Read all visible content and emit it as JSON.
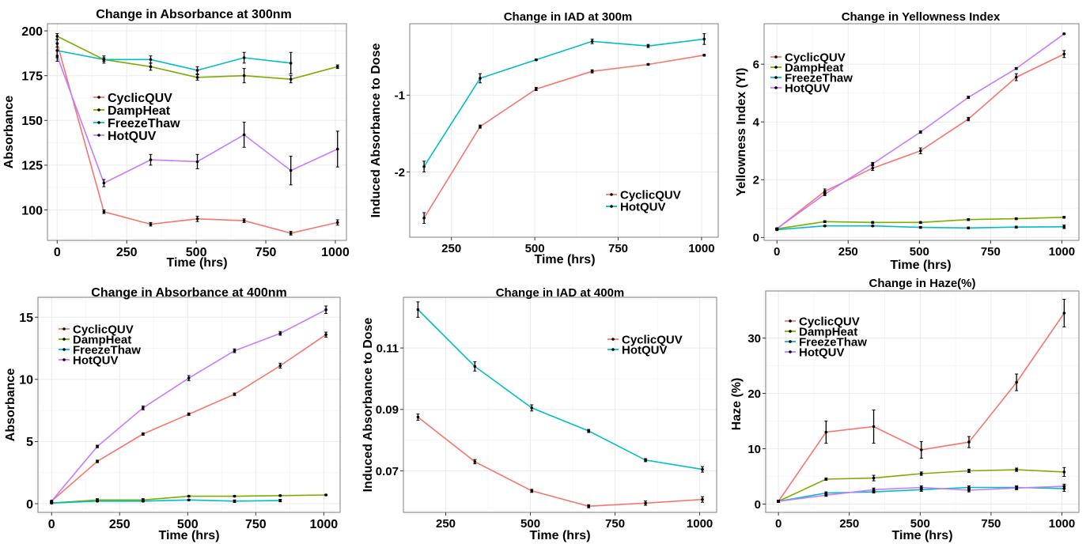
{
  "chart_data": [
    {
      "type": "line",
      "title": "Change in Absorbance at 300nm",
      "xlabel": "Time (hrs)",
      "ylabel": "Absorbance",
      "xlim": [
        -35,
        1040
      ],
      "ylim": [
        83,
        204
      ],
      "xticks": [
        0,
        250,
        500,
        750,
        1000
      ],
      "yticks": [
        100,
        125,
        150,
        175,
        200
      ],
      "legend": "center-left",
      "grid": true,
      "series": [
        {
          "name": "CyclicQUV",
          "color": "#f8766d",
          "x": [
            0,
            168,
            336,
            504,
            672,
            840,
            1008
          ],
          "y": [
            193,
            99,
            92,
            95,
            94,
            87,
            93
          ],
          "err": [
            2,
            1,
            1,
            1.5,
            1,
            1,
            1.5
          ]
        },
        {
          "name": "DampHeat",
          "color": "#7cae00",
          "x": [
            0,
            168,
            336,
            504,
            672,
            840,
            1008
          ],
          "y": [
            197,
            184,
            180,
            174,
            175,
            173,
            180
          ],
          "err": [
            1.5,
            2,
            2,
            1.5,
            4,
            2,
            1
          ]
        },
        {
          "name": "FreezeThaw",
          "color": "#00bfc4",
          "x": [
            0,
            168,
            336,
            504,
            672,
            840
          ],
          "y": [
            189,
            184,
            184,
            178,
            185,
            182
          ],
          "err": [
            4,
            1,
            2,
            2,
            3,
            6
          ]
        },
        {
          "name": "HotQUV",
          "color": "#c77cff",
          "x": [
            0,
            168,
            336,
            504,
            672,
            840,
            1008
          ],
          "y": [
            186,
            115,
            128,
            127,
            142,
            122,
            134
          ],
          "err": [
            3,
            2,
            3,
            4,
            7,
            8,
            10
          ]
        }
      ]
    },
    {
      "type": "line",
      "title": "Change in IAD at 300m",
      "xlabel": "Time (hrs)",
      "ylabel": "Induced Absorbance to Dose",
      "xlim": [
        125,
        1050
      ],
      "ylim": [
        -2.85,
        -0.07
      ],
      "xticks": [
        250,
        500,
        750,
        1000
      ],
      "yticks": [
        -2,
        -1
      ],
      "legend": "bottom-right",
      "grid": true,
      "series": [
        {
          "name": "CyclicQUV",
          "color": "#f8766d",
          "x": [
            168,
            336,
            504,
            672,
            840,
            1008
          ],
          "y": [
            -2.6,
            -1.41,
            -0.92,
            -0.69,
            -0.6,
            -0.48
          ],
          "err": [
            0.07,
            0.02,
            0.02,
            0.02,
            0.01,
            0.01
          ]
        },
        {
          "name": "HotQUV",
          "color": "#00bfc4",
          "x": [
            168,
            336,
            504,
            672,
            840,
            1008
          ],
          "y": [
            -1.93,
            -0.78,
            -0.54,
            -0.3,
            -0.36,
            -0.27
          ],
          "err": [
            0.07,
            0.06,
            0.01,
            0.03,
            0.02,
            0.07
          ]
        }
      ]
    },
    {
      "type": "line",
      "title": "Change in Yellowness Index",
      "xlabel": "Time (hrs)",
      "ylabel": "Yellowness Index (YI)",
      "xlim": [
        -45,
        1060
      ],
      "ylim": [
        -0.1,
        7.4
      ],
      "xticks": [
        0,
        250,
        500,
        750,
        1000
      ],
      "yticks": [
        0,
        2,
        4,
        6
      ],
      "legend": "top-left",
      "grid": true,
      "series": [
        {
          "name": "CyclicQUV",
          "color": "#f8766d",
          "x": [
            0,
            168,
            336,
            504,
            672,
            840,
            1008
          ],
          "y": [
            0.3,
            1.6,
            2.4,
            3.0,
            4.1,
            5.55,
            6.35
          ],
          "err": [
            0.03,
            0.08,
            0.08,
            0.1,
            0.06,
            0.12,
            0.12
          ]
        },
        {
          "name": "DampHeat",
          "color": "#7cae00",
          "x": [
            0,
            168,
            336,
            504,
            672,
            840,
            1008
          ],
          "y": [
            0.3,
            0.55,
            0.52,
            0.52,
            0.62,
            0.65,
            0.7
          ],
          "err": [
            0.02,
            0.03,
            0.03,
            0.03,
            0.03,
            0.03,
            0.03
          ]
        },
        {
          "name": "FreezeThaw",
          "color": "#00bfc4",
          "x": [
            0,
            168,
            336,
            504,
            672,
            840,
            1008
          ],
          "y": [
            0.27,
            0.4,
            0.4,
            0.35,
            0.33,
            0.36,
            0.37
          ],
          "err": [
            0.02,
            0.02,
            0.02,
            0.03,
            0.03,
            0.03,
            0.06
          ]
        },
        {
          "name": "HotQUV",
          "color": "#c77cff",
          "x": [
            0,
            168,
            336,
            504,
            672,
            840,
            1008
          ],
          "y": [
            0.3,
            1.5,
            2.55,
            3.65,
            4.85,
            5.85,
            7.05
          ],
          "err": [
            0.03,
            0.05,
            0.05,
            0.04,
            0.04,
            0.03,
            0.02
          ]
        }
      ]
    },
    {
      "type": "line",
      "title": "Change in Absorbance at 400nm",
      "xlabel": "Time (hrs)",
      "ylabel": "Absorbance",
      "xlim": [
        -50,
        1060
      ],
      "ylim": [
        -0.7,
        16.6
      ],
      "xticks": [
        0,
        250,
        500,
        750,
        1000
      ],
      "yticks": [
        0,
        5,
        10,
        15
      ],
      "legend": "top-left",
      "grid": true,
      "series": [
        {
          "name": "CyclicQUV",
          "color": "#f8766d",
          "x": [
            0,
            168,
            336,
            504,
            672,
            840,
            1008
          ],
          "y": [
            0.2,
            3.4,
            5.6,
            7.2,
            8.8,
            11.1,
            13.6
          ],
          "err": [
            0.05,
            0.1,
            0.1,
            0.1,
            0.1,
            0.2,
            0.2
          ]
        },
        {
          "name": "DampHeat",
          "color": "#7cae00",
          "x": [
            0,
            168,
            336,
            504,
            672,
            840,
            1008
          ],
          "y": [
            0.05,
            0.3,
            0.3,
            0.6,
            0.6,
            0.65,
            0.7
          ],
          "err": [
            0.05,
            0.1,
            0.1,
            0.05,
            0.05,
            0.05,
            0.05
          ]
        },
        {
          "name": "FreezeThaw",
          "color": "#00bfc4",
          "x": [
            0,
            168,
            336,
            504,
            672,
            840
          ],
          "y": [
            0.05,
            0.2,
            0.2,
            0.3,
            0.2,
            0.25
          ],
          "err": [
            0.05,
            0.05,
            0.05,
            0.05,
            0.1,
            0.1
          ]
        },
        {
          "name": "HotQUV",
          "color": "#c77cff",
          "x": [
            0,
            168,
            336,
            504,
            672,
            840,
            1008
          ],
          "y": [
            0.2,
            4.6,
            7.7,
            10.1,
            12.3,
            13.7,
            15.6
          ],
          "err": [
            0.05,
            0.1,
            0.15,
            0.2,
            0.15,
            0.15,
            0.3
          ]
        }
      ]
    },
    {
      "type": "line",
      "title": "Change in IAD at 400m",
      "xlabel": "Time (hrs)",
      "ylabel": "Induced Absorbance to Dose",
      "xlim": [
        125,
        1050
      ],
      "ylim": [
        0.0565,
        0.1265
      ],
      "xticks": [
        250,
        500,
        750,
        1000
      ],
      "yticks": [
        0.07,
        0.09,
        0.11
      ],
      "legend": "top-right",
      "grid": true,
      "series": [
        {
          "name": "CyclicQUV",
          "color": "#f8766d",
          "x": [
            168,
            336,
            504,
            672,
            840,
            1008
          ],
          "y": [
            0.0875,
            0.073,
            0.0635,
            0.0585,
            0.0595,
            0.0607
          ],
          "err": [
            0.001,
            0.0007,
            0.0005,
            0.0005,
            0.0007,
            0.0009
          ]
        },
        {
          "name": "HotQUV",
          "color": "#00bfc4",
          "x": [
            168,
            336,
            504,
            672,
            840,
            1008
          ],
          "y": [
            0.1225,
            0.104,
            0.0905,
            0.083,
            0.0735,
            0.0705
          ],
          "err": [
            0.0025,
            0.0015,
            0.001,
            0.0005,
            0.0005,
            0.0009
          ]
        }
      ]
    },
    {
      "type": "line",
      "title": "Change in Haze(%)",
      "xlabel": "Time (hrs)",
      "ylabel": "Haze (%)",
      "xlim": [
        -45,
        1060
      ],
      "ylim": [
        -1.5,
        38.5
      ],
      "xticks": [
        0,
        250,
        500,
        750,
        1000
      ],
      "yticks": [
        0,
        10,
        20,
        30
      ],
      "legend": "top-left",
      "grid": true,
      "series": [
        {
          "name": "CyclicQUV",
          "color": "#f8766d",
          "x": [
            0,
            168,
            336,
            504,
            672,
            840,
            1008
          ],
          "y": [
            0.5,
            13,
            14,
            9.8,
            11.2,
            22,
            34.5
          ],
          "err": [
            0.2,
            2,
            3,
            1.5,
            1,
            1.5,
            2.5
          ]
        },
        {
          "name": "DampHeat",
          "color": "#7cae00",
          "x": [
            0,
            168,
            336,
            504,
            672,
            840,
            1008
          ],
          "y": [
            0.5,
            4.5,
            4.7,
            5.5,
            6,
            6.2,
            5.8
          ],
          "err": [
            0.2,
            0.2,
            0.5,
            0.3,
            0.3,
            0.3,
            0.8
          ]
        },
        {
          "name": "FreezeThaw",
          "color": "#00bfc4",
          "x": [
            0,
            168,
            336,
            504,
            672,
            840,
            1008
          ],
          "y": [
            0.5,
            2,
            2.2,
            2.6,
            3,
            3,
            2.8
          ],
          "err": [
            0.2,
            0.2,
            0.2,
            0.3,
            0.3,
            0.3,
            0.5
          ]
        },
        {
          "name": "HotQUV",
          "color": "#c77cff",
          "x": [
            0,
            168,
            336,
            504,
            672,
            840,
            1008
          ],
          "y": [
            0.5,
            1.6,
            2.6,
            3,
            2.5,
            2.9,
            3.2
          ],
          "err": [
            0.2,
            0.2,
            0.3,
            0.3,
            0.3,
            0.3,
            0.4
          ]
        }
      ]
    }
  ]
}
